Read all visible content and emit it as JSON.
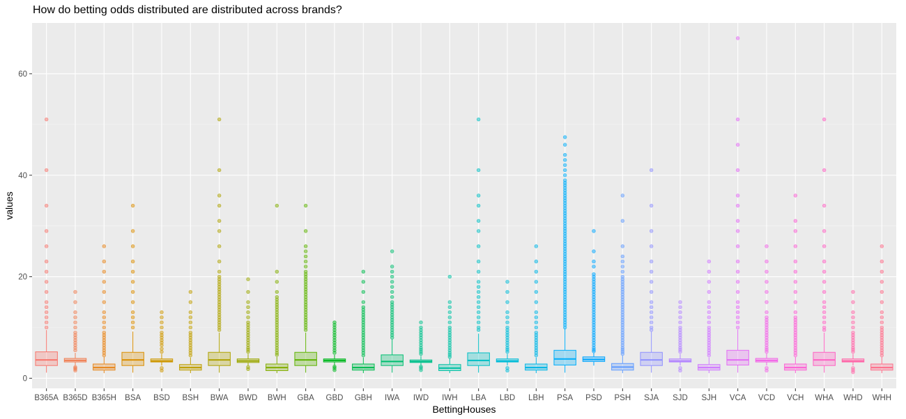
{
  "chart_data": {
    "type": "boxplot",
    "title": "How do betting odds distributed are distributed across brands?",
    "xlabel": "BettingHouses",
    "ylabel": "values",
    "ylim": [
      -2,
      70
    ],
    "yticks": [
      0,
      20,
      40,
      60
    ],
    "grid": true,
    "legend": "none",
    "categories": [
      "B365A",
      "B365D",
      "B365H",
      "BSA",
      "BSD",
      "BSH",
      "BWA",
      "BWD",
      "BWH",
      "GBA",
      "GBD",
      "GBH",
      "IWA",
      "IWD",
      "IWH",
      "LBA",
      "LBD",
      "LBH",
      "PSA",
      "PSD",
      "PSH",
      "SJA",
      "SJD",
      "SJH",
      "VCA",
      "VCD",
      "VCH",
      "WHA",
      "WHD",
      "WHH"
    ],
    "colors": [
      "#F8766D",
      "#F07F53",
      "#E7861B",
      "#DB8E00",
      "#CE9700",
      "#BF9E00",
      "#AEA200",
      "#9AA700",
      "#82AD00",
      "#5EB300",
      "#00B81F",
      "#00BB4E",
      "#00BE70",
      "#00C08B",
      "#00C1A4",
      "#00BFC4",
      "#00BCD8",
      "#00B5E6",
      "#00AEFA",
      "#00A5FF",
      "#619CFF",
      "#8F91FF",
      "#B385FF",
      "#CF78FF",
      "#E36CF5",
      "#F265E7",
      "#FC61D5",
      "#FF61C3",
      "#FF66A8",
      "#FE6E8A"
    ],
    "boxes": [
      {
        "q1": 2.5,
        "median": 3.6,
        "q3": 5.2,
        "lo": 1.1,
        "hi": 9.5,
        "outliers": [
          10,
          11,
          12,
          13,
          14,
          15,
          17,
          19,
          21,
          23,
          26,
          29,
          34,
          41,
          51
        ]
      },
      {
        "q1": 3.2,
        "median": 3.5,
        "q3": 3.9,
        "lo": 2.5,
        "hi": 5.0,
        "outliers": [
          1.5,
          1.8,
          2.0,
          2.2,
          5.5,
          6,
          6.5,
          7,
          7.5,
          8,
          8.5,
          9,
          10,
          11,
          12,
          13,
          15,
          17
        ]
      },
      {
        "q1": 1.6,
        "median": 2.1,
        "q3": 2.8,
        "lo": 1.0,
        "hi": 4.2,
        "outliers": [
          4.5,
          5,
          5.5,
          6,
          6.5,
          7,
          7.5,
          8,
          8.5,
          9,
          10,
          11,
          12,
          13,
          15,
          17,
          19,
          21,
          23,
          26
        ]
      },
      {
        "q1": 2.5,
        "median": 3.6,
        "q3": 5.1,
        "lo": 1.1,
        "hi": 9.2,
        "outliers": [
          10,
          11,
          12,
          13,
          15,
          17,
          19,
          21,
          23,
          26,
          29,
          34
        ]
      },
      {
        "q1": 3.2,
        "median": 3.4,
        "q3": 3.8,
        "lo": 2.5,
        "hi": 4.8,
        "outliers": [
          1.5,
          2.0,
          5.2,
          5.8,
          6.5,
          7,
          7.5,
          8,
          8.5,
          9,
          10,
          11,
          12,
          13
        ]
      },
      {
        "q1": 1.6,
        "median": 2.1,
        "q3": 2.7,
        "lo": 1.0,
        "hi": 4.1,
        "outliers": [
          4.5,
          5,
          5.5,
          6,
          6.5,
          7,
          7.5,
          8,
          8.5,
          9,
          10,
          11,
          12,
          13,
          15,
          17
        ]
      },
      {
        "q1": 2.5,
        "median": 3.6,
        "q3": 5.1,
        "lo": 1.1,
        "hi": 9.0,
        "outliers": [
          9.5,
          10,
          10.5,
          11,
          11.5,
          12,
          12.5,
          13,
          13.5,
          14,
          14.5,
          15,
          15.5,
          16,
          16.5,
          17,
          17.5,
          18,
          18.5,
          19,
          19.5,
          20,
          21,
          23,
          26,
          29,
          31,
          34,
          36,
          41,
          51
        ]
      },
      {
        "q1": 3.1,
        "median": 3.4,
        "q3": 3.8,
        "lo": 2.5,
        "hi": 4.8,
        "outliers": [
          1.8,
          2.2,
          5.2,
          5.6,
          6,
          6.5,
          7,
          7.5,
          8,
          8.5,
          9,
          9.5,
          10,
          10.5,
          11,
          12,
          13,
          14,
          15,
          17,
          19.5
        ]
      },
      {
        "q1": 1.5,
        "median": 2.1,
        "q3": 2.8,
        "lo": 1.0,
        "hi": 4.2,
        "outliers": [
          4.6,
          5,
          5.5,
          6,
          6.5,
          7,
          7.5,
          8,
          8.5,
          9,
          9.5,
          10,
          10.5,
          11,
          11.5,
          12,
          12.5,
          13,
          13.5,
          14,
          14.5,
          15,
          15.5,
          16,
          17,
          19,
          21,
          34
        ]
      },
      {
        "q1": 2.5,
        "median": 3.6,
        "q3": 5.1,
        "lo": 1.1,
        "hi": 9.0,
        "outliers": [
          9.5,
          10,
          10.5,
          11,
          11.5,
          12,
          12.5,
          13,
          13.5,
          14,
          14.5,
          15,
          15.5,
          16,
          16.5,
          17,
          17.5,
          18,
          18.5,
          19,
          19.5,
          20,
          20.5,
          21,
          22,
          23,
          24,
          25,
          26,
          29,
          34
        ]
      },
      {
        "q1": 3.2,
        "median": 3.5,
        "q3": 3.8,
        "lo": 2.5,
        "hi": 4.6,
        "outliers": [
          1.6,
          2.0,
          2.3,
          5,
          5.5,
          6,
          6.5,
          7,
          7.5,
          8,
          8.5,
          9,
          9.5,
          10,
          10.5,
          11
        ]
      },
      {
        "q1": 1.6,
        "median": 2.1,
        "q3": 2.8,
        "lo": 1.0,
        "hi": 4.1,
        "outliers": [
          4.5,
          5,
          5.5,
          6,
          6.5,
          7,
          7.5,
          8,
          8.5,
          9,
          9.5,
          10,
          10.5,
          11,
          11.5,
          12,
          12.5,
          13,
          13.5,
          14,
          15,
          17,
          19,
          21
        ]
      },
      {
        "q1": 2.5,
        "median": 3.3,
        "q3": 4.6,
        "lo": 1.1,
        "hi": 7.7,
        "outliers": [
          8,
          8.5,
          9,
          9.5,
          10,
          10.5,
          11,
          11.5,
          12,
          12.5,
          13,
          13.5,
          14,
          14.5,
          15,
          16,
          17,
          18,
          19,
          20,
          21,
          22,
          25
        ]
      },
      {
        "q1": 3.1,
        "median": 3.3,
        "q3": 3.6,
        "lo": 2.5,
        "hi": 4.4,
        "outliers": [
          1.6,
          2.0,
          2.3,
          4.8,
          5.2,
          5.6,
          6,
          6.5,
          7,
          7.5,
          8,
          8.5,
          9,
          9.5,
          10,
          11
        ]
      },
      {
        "q1": 1.5,
        "median": 2.0,
        "q3": 2.7,
        "lo": 1.0,
        "hi": 3.9,
        "outliers": [
          4.2,
          4.6,
          5,
          5.5,
          6,
          6.5,
          7,
          7.5,
          8,
          8.5,
          9,
          9.5,
          10,
          11,
          12,
          13,
          14,
          15,
          20
        ]
      },
      {
        "q1": 2.5,
        "median": 3.5,
        "q3": 5.0,
        "lo": 1.1,
        "hi": 8.8,
        "outliers": [
          9.5,
          10,
          11,
          12,
          13,
          14,
          15,
          16,
          17,
          18,
          19,
          21,
          23,
          26,
          29,
          31,
          34,
          36,
          41,
          51
        ]
      },
      {
        "q1": 3.2,
        "median": 3.4,
        "q3": 3.8,
        "lo": 2.5,
        "hi": 4.8,
        "outliers": [
          1.5,
          2.0,
          5.2,
          5.6,
          6,
          6.5,
          7,
          7.5,
          8,
          8.5,
          9,
          9.5,
          10,
          11,
          12,
          13,
          15,
          17,
          19
        ]
      },
      {
        "q1": 1.6,
        "median": 2.1,
        "q3": 2.8,
        "lo": 1.0,
        "hi": 4.1,
        "outliers": [
          4.5,
          5,
          5.5,
          6,
          6.5,
          7,
          7.5,
          8,
          8.5,
          9,
          10,
          11,
          12,
          13,
          15,
          17,
          19,
          21,
          23,
          26
        ]
      },
      {
        "q1": 2.6,
        "median": 3.8,
        "q3": 5.5,
        "lo": 1.1,
        "hi": 9.8,
        "outliers": [
          10,
          10.5,
          11,
          11.5,
          12,
          12.5,
          13,
          13.5,
          14,
          14.5,
          15,
          15.5,
          16,
          16.5,
          17,
          17.5,
          18,
          18.5,
          19,
          19.5,
          20,
          20.5,
          21,
          21.5,
          22,
          22.5,
          23,
          23.5,
          24,
          24.5,
          25,
          25.5,
          26,
          26.5,
          27,
          27.5,
          28,
          28.5,
          29,
          29.5,
          30,
          30.5,
          31,
          31.5,
          32,
          32.5,
          33,
          33.5,
          34,
          34.5,
          35,
          35.5,
          36,
          36.5,
          37,
          37.5,
          38,
          38.5,
          39,
          40,
          41,
          42,
          43,
          44,
          46,
          47.5
        ]
      },
      {
        "q1": 3.3,
        "median": 3.7,
        "q3": 4.2,
        "lo": 2.5,
        "hi": 5.0,
        "outliers": [
          5.3,
          5.6,
          6,
          6.5,
          7,
          7.5,
          8,
          8.5,
          9,
          9.5,
          10,
          10.5,
          11,
          11.5,
          12,
          12.5,
          13,
          13.5,
          14,
          14.5,
          15,
          15.5,
          16,
          16.5,
          17,
          17.5,
          18,
          18.5,
          19,
          19.5,
          20,
          20.5,
          22,
          23,
          25,
          29
        ]
      },
      {
        "q1": 1.6,
        "median": 2.2,
        "q3": 2.9,
        "lo": 1.0,
        "hi": 4.5,
        "outliers": [
          4.8,
          5.2,
          5.6,
          6,
          6.5,
          7,
          7.5,
          8,
          8.5,
          9,
          9.5,
          10,
          10.5,
          11,
          11.5,
          12,
          12.5,
          13,
          13.5,
          14,
          14.5,
          15,
          15.5,
          16,
          16.5,
          17,
          17.5,
          18,
          18.5,
          19,
          19.5,
          20,
          21,
          22,
          23,
          24,
          26,
          31,
          36
        ]
      },
      {
        "q1": 2.5,
        "median": 3.6,
        "q3": 5.1,
        "lo": 1.1,
        "hi": 9.2,
        "outliers": [
          9.5,
          10,
          11,
          12,
          13,
          14,
          15,
          17,
          19,
          21,
          23,
          26,
          29,
          34,
          41
        ]
      },
      {
        "q1": 3.2,
        "median": 3.4,
        "q3": 3.8,
        "lo": 2.5,
        "hi": 4.8,
        "outliers": [
          1.5,
          2.0,
          5.2,
          5.6,
          6,
          6.5,
          7,
          7.5,
          8,
          8.5,
          9,
          9.5,
          10,
          11,
          12,
          13,
          14,
          15
        ]
      },
      {
        "q1": 1.6,
        "median": 2.1,
        "q3": 2.7,
        "lo": 1.0,
        "hi": 4.1,
        "outliers": [
          4.5,
          5,
          5.5,
          6,
          6.5,
          7,
          7.5,
          8,
          8.5,
          9,
          9.5,
          10,
          11,
          12,
          13,
          14,
          15,
          17,
          19,
          21,
          23
        ]
      },
      {
        "q1": 2.6,
        "median": 3.6,
        "q3": 5.5,
        "lo": 1.1,
        "hi": 9.6,
        "outliers": [
          10,
          11,
          12,
          13,
          14,
          15,
          17,
          19,
          21,
          23,
          26,
          29,
          31,
          34,
          36,
          41,
          46,
          51,
          67
        ]
      },
      {
        "q1": 3.2,
        "median": 3.5,
        "q3": 3.9,
        "lo": 2.5,
        "hi": 4.9,
        "outliers": [
          1.5,
          2.0,
          5.2,
          5.6,
          6,
          6.5,
          7,
          7.5,
          8,
          8.5,
          9,
          9.5,
          10,
          10.5,
          11,
          11.5,
          12,
          13,
          15,
          17,
          19,
          21,
          23,
          26
        ]
      },
      {
        "q1": 1.6,
        "median": 2.1,
        "q3": 2.8,
        "lo": 1.0,
        "hi": 4.2,
        "outliers": [
          4.5,
          5,
          5.5,
          6,
          6.5,
          7,
          7.5,
          8,
          8.5,
          9,
          9.5,
          10,
          10.5,
          11,
          11.5,
          12,
          13,
          15,
          17,
          19,
          21,
          23,
          26,
          29,
          31,
          36
        ]
      },
      {
        "q1": 2.5,
        "median": 3.6,
        "q3": 5.1,
        "lo": 1.1,
        "hi": 9.0,
        "outliers": [
          9.5,
          10,
          11,
          12,
          13,
          14,
          15,
          17,
          19,
          21,
          23,
          26,
          29,
          34,
          41,
          51
        ]
      },
      {
        "q1": 3.2,
        "median": 3.4,
        "q3": 3.8,
        "lo": 2.5,
        "hi": 4.8,
        "outliers": [
          1.2,
          1.6,
          2.0,
          5.2,
          5.6,
          6,
          6.5,
          7,
          7.5,
          8,
          8.5,
          9,
          10,
          11,
          12,
          13,
          15,
          17
        ]
      },
      {
        "q1": 1.6,
        "median": 2.1,
        "q3": 2.8,
        "lo": 1.0,
        "hi": 4.2,
        "outliers": [
          4.5,
          5,
          5.5,
          6,
          6.5,
          7,
          7.5,
          8,
          8.5,
          9,
          9.5,
          10,
          11,
          12,
          13,
          15,
          17,
          19,
          21,
          23,
          26
        ]
      }
    ]
  }
}
